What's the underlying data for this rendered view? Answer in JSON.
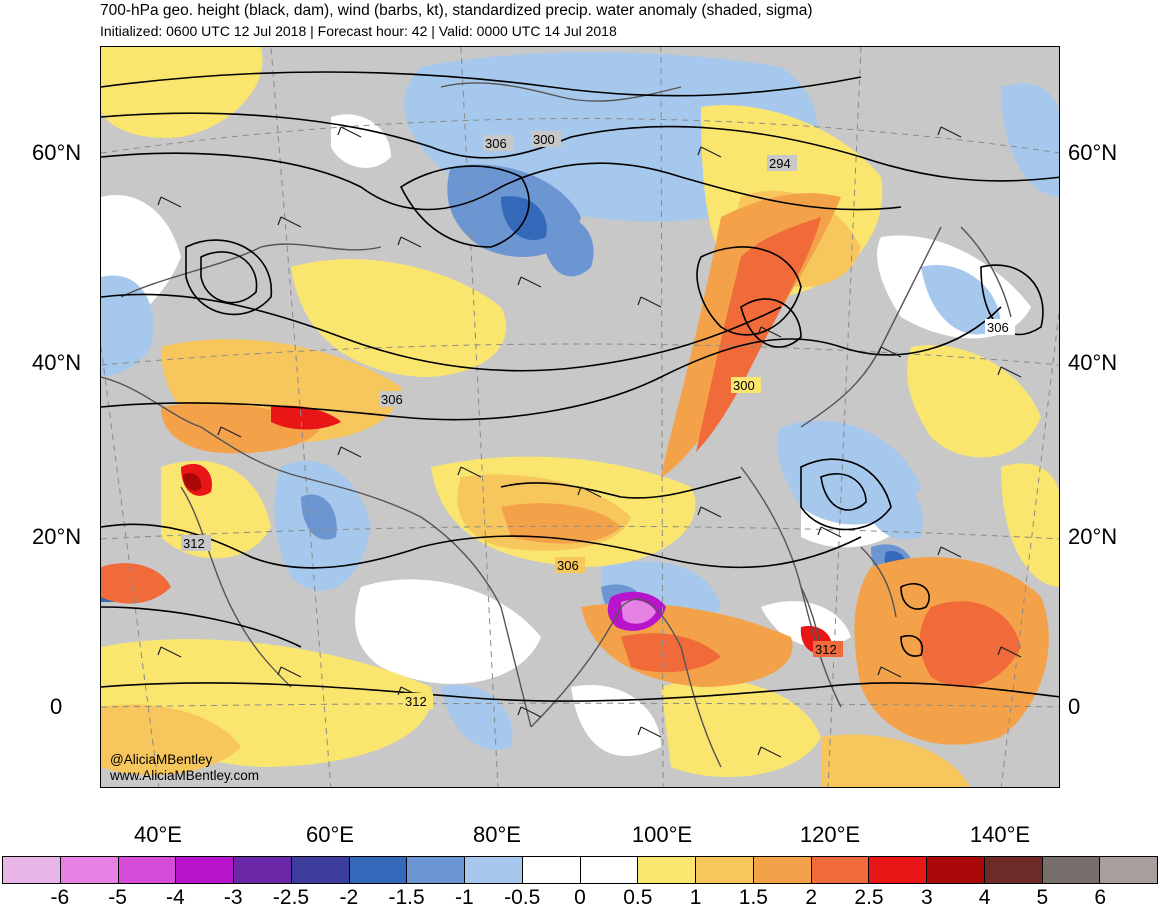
{
  "header": {
    "title": "700-hPa geo. height (black, dam), wind (barbs, kt), standardized precip. water anomaly (shaded, sigma)",
    "subtitle": "Initialized: 0600 UTC 12 Jul 2018 | Forecast hour: 42 | Valid: 0000 UTC 14 Jul 2018"
  },
  "map": {
    "lat_labels": [
      "60°N",
      "40°N",
      "20°N",
      "0"
    ],
    "lon_labels": [
      "40°E",
      "60°E",
      "80°E",
      "100°E",
      "120°E",
      "140°E"
    ],
    "contour_labels": [
      "306",
      "300",
      "294",
      "306",
      "300",
      "306",
      "312",
      "306",
      "312",
      "312"
    ],
    "credit_handle": "@AliciaMBentley",
    "credit_url": "www.AliciaMBentley.com"
  },
  "colorbar": {
    "colors": [
      "#e8b6e6",
      "#e582e4",
      "#d64bd8",
      "#b814cc",
      "#6a28a8",
      "#3c3c9c",
      "#3468b8",
      "#6c96d2",
      "#a6c8ec",
      "#ffffff",
      "#ffffff",
      "#fae66e",
      "#f7c75e",
      "#f4a24a",
      "#f06a3a",
      "#e81616",
      "#a80808",
      "#6e2a26",
      "#786e6c",
      "#a89e9c"
    ],
    "labels": [
      "-6",
      "-5",
      "-4",
      "-3",
      "-2.5",
      "-2",
      "-1.5",
      "-1",
      "-0.5",
      "0",
      "0.5",
      "1",
      "1.5",
      "2",
      "2.5",
      "3",
      "4",
      "5",
      "6"
    ]
  }
}
